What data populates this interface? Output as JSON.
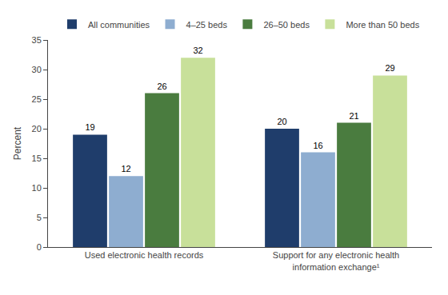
{
  "chart_data": {
    "type": "bar",
    "categories": [
      "Used electronic health records",
      "Support for any electronic health\ninformation exchange¹"
    ],
    "series": [
      {
        "name": "All communities",
        "values": [
          19,
          20
        ],
        "color": "#1f3d6b"
      },
      {
        "name": "4–25 beds",
        "values": [
          12,
          16
        ],
        "color": "#8eadd0"
      },
      {
        "name": "26–50 beds",
        "values": [
          26,
          21
        ],
        "color": "#4a7c3f"
      },
      {
        "name": "More than 50 beds",
        "values": [
          32,
          29
        ],
        "color": "#c8e09a"
      }
    ],
    "ylabel": "Percent",
    "ylim": [
      0,
      35
    ],
    "yticks": [
      0,
      5,
      10,
      15,
      20,
      25,
      30,
      35
    ],
    "grid": false,
    "data_labels": true,
    "legend": "top"
  }
}
